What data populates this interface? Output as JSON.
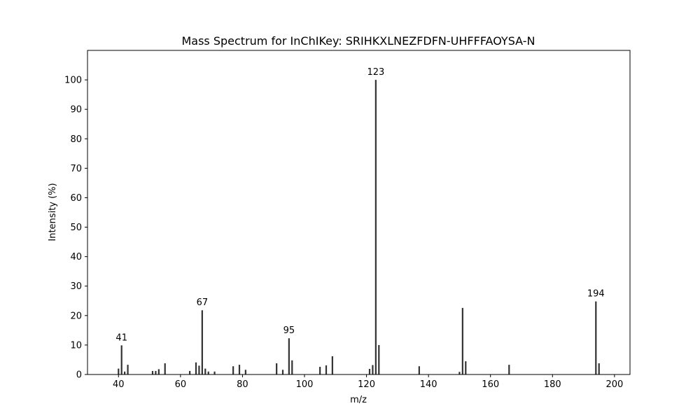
{
  "chart_data": {
    "type": "bar",
    "title": "Mass Spectrum for InChIKey: SRIHKXLNEZFDFN-UHFFFAOYSA-N",
    "xlabel": "m/z",
    "ylabel": "Intensity (%)",
    "xlim": [
      30,
      205
    ],
    "ylim": [
      0,
      110
    ],
    "xticks": [
      40,
      60,
      80,
      100,
      120,
      140,
      160,
      180,
      200
    ],
    "yticks": [
      0,
      10,
      20,
      30,
      40,
      50,
      60,
      70,
      80,
      90,
      100
    ],
    "grid": false,
    "bar_color": "#333333",
    "peaks": [
      {
        "mz": 40,
        "intensity": 2.0
      },
      {
        "mz": 41,
        "intensity": 9.9
      },
      {
        "mz": 42,
        "intensity": 1.0
      },
      {
        "mz": 43,
        "intensity": 3.3
      },
      {
        "mz": 51,
        "intensity": 1.2
      },
      {
        "mz": 52,
        "intensity": 1.2
      },
      {
        "mz": 53,
        "intensity": 1.8
      },
      {
        "mz": 55,
        "intensity": 3.8
      },
      {
        "mz": 63,
        "intensity": 1.2
      },
      {
        "mz": 65,
        "intensity": 4.1
      },
      {
        "mz": 66,
        "intensity": 3.0
      },
      {
        "mz": 67,
        "intensity": 21.8
      },
      {
        "mz": 68,
        "intensity": 2.0
      },
      {
        "mz": 69,
        "intensity": 1.0
      },
      {
        "mz": 71,
        "intensity": 1.0
      },
      {
        "mz": 77,
        "intensity": 2.8
      },
      {
        "mz": 79,
        "intensity": 3.3
      },
      {
        "mz": 81,
        "intensity": 1.6
      },
      {
        "mz": 91,
        "intensity": 3.8
      },
      {
        "mz": 93,
        "intensity": 1.6
      },
      {
        "mz": 95,
        "intensity": 12.3
      },
      {
        "mz": 96,
        "intensity": 4.8
      },
      {
        "mz": 105,
        "intensity": 2.6
      },
      {
        "mz": 107,
        "intensity": 3.1
      },
      {
        "mz": 109,
        "intensity": 6.2
      },
      {
        "mz": 121,
        "intensity": 1.9
      },
      {
        "mz": 122,
        "intensity": 3.2
      },
      {
        "mz": 123,
        "intensity": 100.0
      },
      {
        "mz": 124,
        "intensity": 10.0
      },
      {
        "mz": 137,
        "intensity": 2.8
      },
      {
        "mz": 150,
        "intensity": 0.9
      },
      {
        "mz": 151,
        "intensity": 22.6
      },
      {
        "mz": 152,
        "intensity": 4.5
      },
      {
        "mz": 166,
        "intensity": 3.3
      },
      {
        "mz": 194,
        "intensity": 24.8
      },
      {
        "mz": 195,
        "intensity": 3.8
      }
    ],
    "annotations": [
      {
        "mz": 41,
        "label": "41"
      },
      {
        "mz": 67,
        "label": "67"
      },
      {
        "mz": 95,
        "label": "95"
      },
      {
        "mz": 123,
        "label": "123"
      },
      {
        "mz": 194,
        "label": "194"
      }
    ]
  }
}
